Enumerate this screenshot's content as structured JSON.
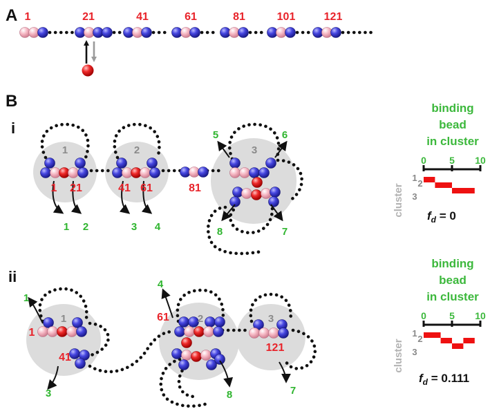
{
  "colors": {
    "monomer": "#f4b6c2",
    "binding_site": "#3b3bd6",
    "binder": "#e8232a",
    "cluster_bg": "#dcdcdc",
    "red_label": "#e8232a",
    "green_label": "#2fb52f",
    "gray_label": "#8a8a8a",
    "bar": "#ee1111"
  },
  "panel_a": {
    "letter": "A",
    "bead_labels": [
      "1",
      "21",
      "41",
      "61",
      "81",
      "101",
      "121"
    ]
  },
  "panel_b": {
    "letter": "B",
    "i": {
      "label": "i",
      "cluster_ids": [
        "1",
        "2",
        "3"
      ],
      "red_labels": [
        "1",
        "21",
        "41",
        "61",
        "81"
      ],
      "green_labels": [
        "1",
        "2",
        "3",
        "4",
        "5",
        "6",
        "7",
        "8"
      ],
      "plot": {
        "title_lines": [
          "binding",
          "bead",
          "in cluster"
        ],
        "x_ticks": [
          "0",
          "5",
          "10"
        ],
        "y_label": "cluster",
        "y_ticks": [
          "1",
          "2",
          "3"
        ],
        "fd_label": "f",
        "fd_sub": "d",
        "fd_value": " = 0"
      }
    },
    "ii": {
      "label": "ii",
      "cluster_ids": [
        "1",
        "2",
        "3"
      ],
      "red_labels": [
        "1",
        "41",
        "61",
        "121"
      ],
      "green_labels": [
        "1",
        "3",
        "4",
        "7",
        "8"
      ],
      "plot": {
        "title_lines": [
          "binding",
          "bead",
          "in cluster"
        ],
        "x_ticks": [
          "0",
          "5",
          "10"
        ],
        "y_label": "cluster",
        "y_ticks": [
          "1",
          "2",
          "3"
        ],
        "fd_label": "f",
        "fd_sub": "d",
        "fd_value": " = 0.111"
      }
    }
  },
  "chart_data": [
    {
      "type": "bar",
      "xlabel": "binding bead in cluster",
      "ylabel": "cluster",
      "xlim": [
        0,
        10
      ],
      "categories": [
        "1",
        "2",
        "3"
      ],
      "cluster_of_binding_bead": [
        1,
        1,
        2,
        2,
        2,
        3,
        3,
        3,
        3
      ],
      "fd": 0
    },
    {
      "type": "bar",
      "xlabel": "binding bead in cluster",
      "ylabel": "cluster",
      "xlim": [
        0,
        10
      ],
      "categories": [
        "1",
        "2",
        "3"
      ],
      "cluster_of_binding_bead": [
        1,
        1,
        1,
        2,
        2,
        3,
        3,
        2,
        2
      ],
      "fd": 0.111
    }
  ]
}
